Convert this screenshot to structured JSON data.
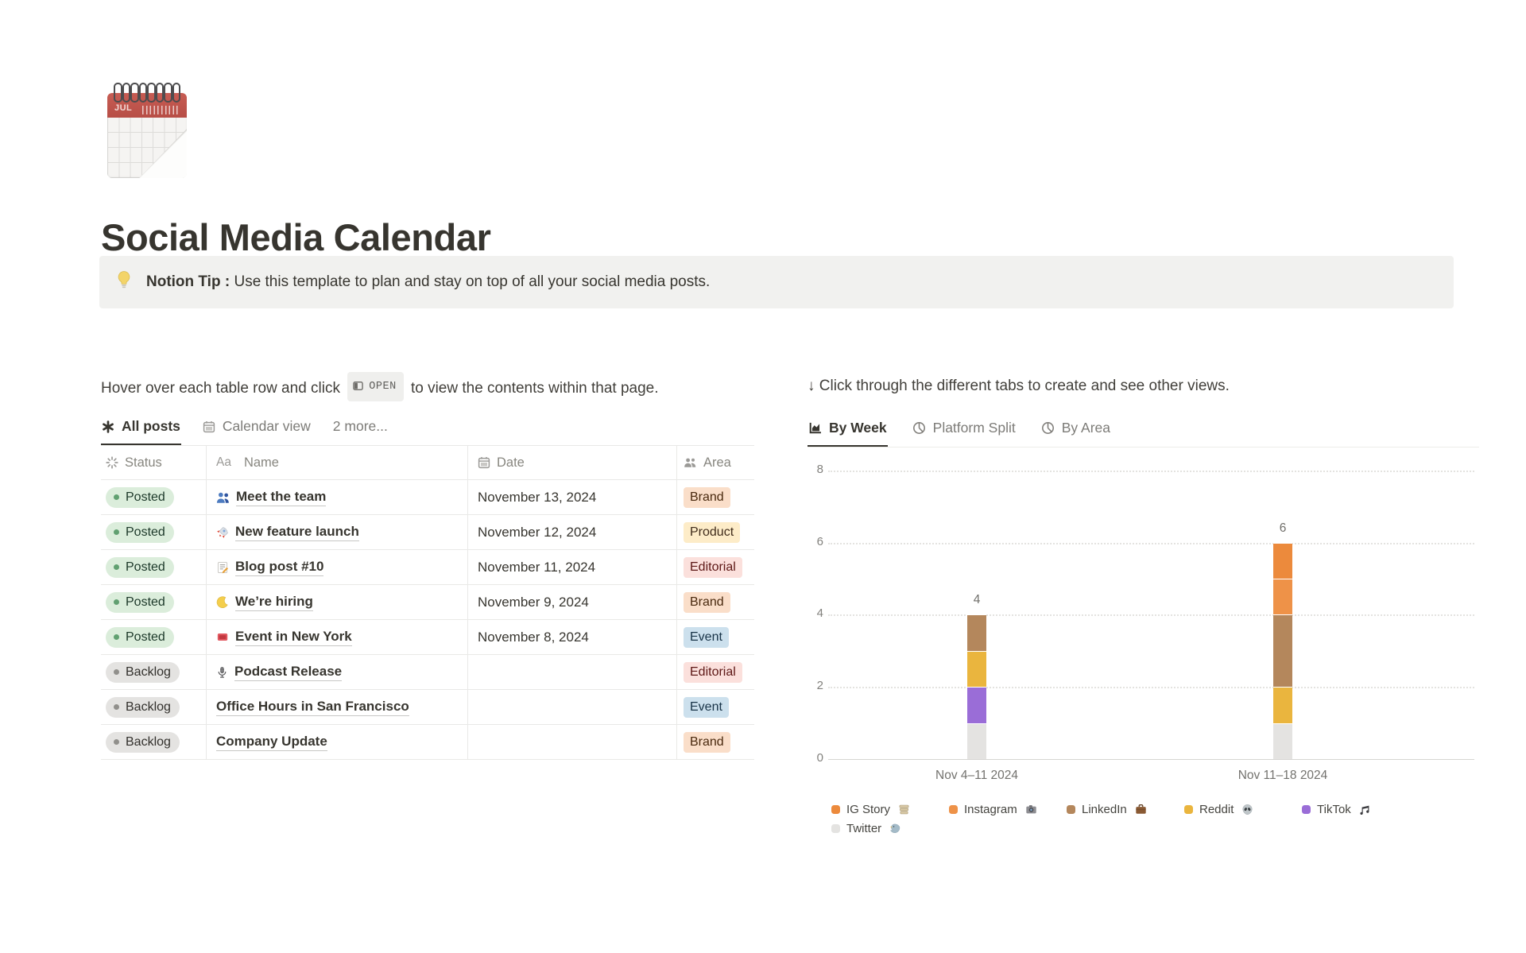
{
  "page": {
    "title": "Social Media Calendar",
    "icon": "spiral-calendar-icon",
    "icon_month": "JUL"
  },
  "callout": {
    "icon": "light-bulb-icon",
    "bold": "Notion Tip :",
    "text": " Use this template to plan and stay on top of all your social media posts."
  },
  "left": {
    "instruction_prefix": "Hover over each table row and click",
    "open_label": "OPEN",
    "instruction_suffix": "to view the contents within that page.",
    "tabs": [
      {
        "label": "All posts",
        "icon": "asterisk-icon",
        "active": true
      },
      {
        "label": "Calendar view",
        "icon": "calendar-icon",
        "active": false
      },
      {
        "label": "2 more...",
        "icon": null,
        "active": false
      }
    ],
    "table": {
      "columns": [
        {
          "label": "Status",
          "icon": "status-spinner-icon"
        },
        {
          "label": "Name",
          "icon": "aa-icon"
        },
        {
          "label": "Date",
          "icon": "calendar-icon"
        },
        {
          "label": "Area",
          "icon": "people-icon"
        }
      ],
      "rows": [
        {
          "status": "Posted",
          "status_key": "Posted",
          "icon": "team-icon",
          "name": "Meet the team",
          "date": "November 13, 2024",
          "area": "Brand",
          "area_color": "orange"
        },
        {
          "status": "Posted",
          "status_key": "Posted",
          "icon": "rocket-icon",
          "name": "New feature launch",
          "date": "November 12, 2024",
          "area": "Product",
          "area_color": "yellow"
        },
        {
          "status": "Posted",
          "status_key": "Posted",
          "icon": "memo-icon",
          "name": "Blog post #10",
          "date": "November 11, 2024",
          "area": "Editorial",
          "area_color": "red"
        },
        {
          "status": "Posted",
          "status_key": "Posted",
          "icon": "crescent-icon",
          "name": "We’re hiring",
          "date": "November 9, 2024",
          "area": "Brand",
          "area_color": "orange"
        },
        {
          "status": "Posted",
          "status_key": "Posted",
          "icon": "ticket-icon",
          "name": "Event in New York",
          "date": "November 8, 2024",
          "area": "Event",
          "area_color": "blue"
        },
        {
          "status": "Backlog",
          "status_key": "Backlog",
          "icon": "microphone-icon",
          "name": "Podcast Release",
          "date": "",
          "area": "Editorial",
          "area_color": "red"
        },
        {
          "status": "Backlog",
          "status_key": "Backlog",
          "icon": null,
          "name": "Office Hours in San Francisco",
          "date": "",
          "area": "Event",
          "area_color": "blue"
        },
        {
          "status": "Backlog",
          "status_key": "Backlog",
          "icon": null,
          "name": "Company Update",
          "date": "",
          "area": "Brand",
          "area_color": "orange"
        }
      ]
    }
  },
  "right": {
    "instruction": "↓ Click through the different tabs to create and see other views.",
    "tabs": [
      {
        "label": "By Week",
        "icon": "bar-chart-icon",
        "active": true
      },
      {
        "label": "Platform Split",
        "icon": "pie-chart-icon",
        "active": false
      },
      {
        "label": "By Area",
        "icon": "pie-chart-icon",
        "active": false
      }
    ]
  },
  "chart_data": {
    "type": "bar",
    "stacked": true,
    "categories": [
      "Nov 4–11 2024",
      "Nov 11–18 2024"
    ],
    "series": [
      {
        "name": "IG Story",
        "icon": "stack-icon",
        "color": "#EC8A3C",
        "values": [
          0,
          1
        ]
      },
      {
        "name": "Instagram",
        "icon": "camera-icon",
        "color": "#EE9248",
        "values": [
          0,
          1
        ]
      },
      {
        "name": "LinkedIn",
        "icon": "briefcase-icon",
        "color": "#B4875C",
        "values": [
          1,
          2
        ]
      },
      {
        "name": "Reddit",
        "icon": "alien-icon",
        "color": "#EAB53E",
        "values": [
          1,
          1
        ]
      },
      {
        "name": "TikTok",
        "icon": "music-note-icon",
        "color": "#9A6DD7",
        "values": [
          1,
          0
        ]
      },
      {
        "name": "Twitter",
        "icon": "bird-icon",
        "color": "#E4E3E1",
        "values": [
          1,
          1
        ]
      }
    ],
    "totals": [
      4,
      6
    ],
    "ylim": [
      0,
      8
    ],
    "yticks": [
      0,
      2,
      4,
      6,
      8
    ],
    "grid": "dotted-horizontal",
    "legend_position": "bottom"
  },
  "palette": {
    "status": {
      "Posted": {
        "bg": "#DBEDDB",
        "dot": "#61A071",
        "text": "#1C3829"
      },
      "Backlog": {
        "bg": "#E4E3E1",
        "dot": "#91908C",
        "text": "#32302C"
      }
    },
    "tags": {
      "orange": {
        "bg": "#FADEC9",
        "text": "#49290E"
      },
      "yellow": {
        "bg": "#FDECC8",
        "text": "#402C1B"
      },
      "red": {
        "bg": "#FBE0DC",
        "text": "#5D1715"
      },
      "blue": {
        "bg": "#CCE0ED",
        "text": "#183347"
      }
    }
  }
}
